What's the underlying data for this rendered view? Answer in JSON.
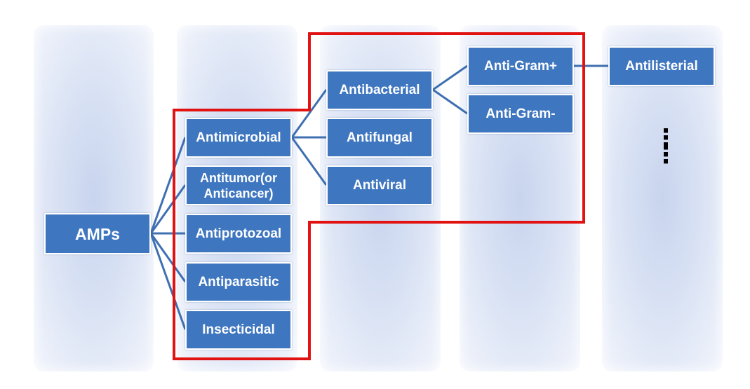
{
  "root": {
    "label": "AMPs"
  },
  "level1": [
    {
      "label": "Antimicrobial"
    },
    {
      "label": "Antitumor(or Anticancer)"
    },
    {
      "label": "Antiprotozoal"
    },
    {
      "label": "Antiparasitic"
    },
    {
      "label": "Insecticidal"
    }
  ],
  "level2": [
    {
      "label": "Antibacterial"
    },
    {
      "label": "Antifungal"
    },
    {
      "label": "Antiviral"
    }
  ],
  "level3": [
    {
      "label": "Anti-Gram+"
    },
    {
      "label": "Anti-Gram-"
    }
  ],
  "level4": [
    {
      "label": "Antilisterial"
    }
  ],
  "more": {
    "text": "⋮\n⋮"
  },
  "colors": {
    "node_fill": "#3e76c0",
    "connector": "#3f6fb0",
    "highlight": "#e11212",
    "column_background": "#d9e2f4"
  }
}
